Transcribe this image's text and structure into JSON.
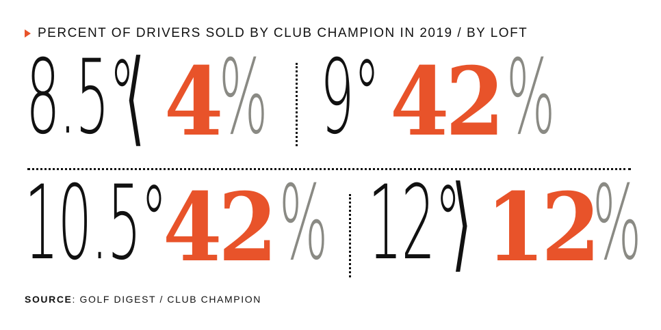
{
  "title": "PERCENT OF DRIVERS SOLD BY CLUB CHAMPION IN 2019 / BY LOFT",
  "source_label": "SOURCE",
  "source_text": ": GOLF DIGEST / CLUB CHAMPION",
  "colors": {
    "accent": "#e8532a",
    "percent_sign": "#8a8a84",
    "text": "#111111"
  },
  "chart_data": {
    "type": "table",
    "title": "PERCENT OF DRIVERS SOLD BY CLUB CHAMPION IN 2019 / BY LOFT",
    "categories": [
      "8.5°<",
      "9°",
      "10.5°",
      "12°>"
    ],
    "values": [
      4,
      42,
      42,
      12
    ],
    "unit": "%",
    "cells": [
      {
        "loft": "8.5°",
        "symbol": "⟨",
        "value": "4",
        "unit": "%"
      },
      {
        "loft": "9°",
        "symbol": "",
        "value": "42",
        "unit": "%"
      },
      {
        "loft": "10.5°",
        "symbol": "",
        "value": "42",
        "unit": "%"
      },
      {
        "loft": "12°",
        "symbol": "⟩",
        "value": "12",
        "unit": "%"
      }
    ]
  }
}
